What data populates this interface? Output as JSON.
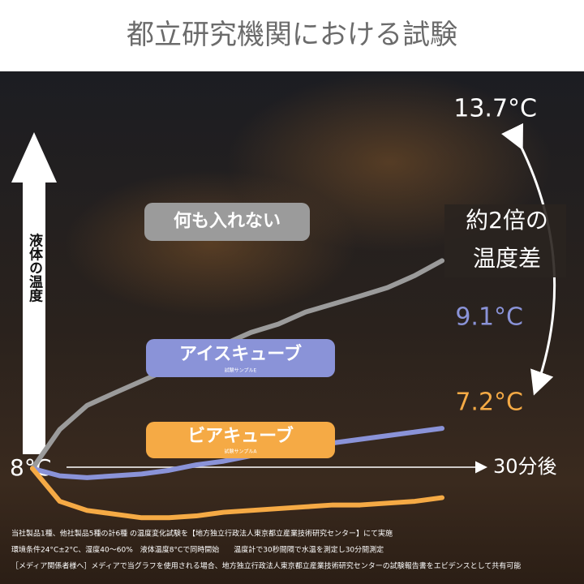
{
  "title": "都立研究機関における試験",
  "chart_data": {
    "type": "line",
    "y_axis_label": "液体の温度",
    "start_label": "8°C",
    "end_x_label": "30分後",
    "difference_label": [
      "約2倍の",
      "温度差"
    ],
    "x": [
      0,
      2,
      4,
      6,
      8,
      10,
      12,
      14,
      16,
      18,
      20,
      22,
      24,
      26,
      28,
      30
    ],
    "xlim": [
      0,
      30
    ],
    "ylim": [
      5.5,
      17
    ],
    "series": [
      {
        "name": "何も入れない",
        "color": "#9b9b9b",
        "end_label": "13.7°C",
        "values": [
          8.0,
          9.07,
          9.73,
          10.07,
          10.4,
          10.73,
          11.07,
          11.4,
          11.73,
          11.96,
          12.29,
          12.51,
          12.73,
          12.96,
          13.29,
          13.7
        ]
      },
      {
        "name": "アイスキューブ",
        "sample": "試験サンプルE",
        "color": "#8a93d8",
        "end_label": "9.1°C",
        "values": [
          8.0,
          7.8,
          7.75,
          7.8,
          7.85,
          7.95,
          8.1,
          8.2,
          8.35,
          8.45,
          8.55,
          8.7,
          8.8,
          8.9,
          9.0,
          9.1
        ]
      },
      {
        "name": "ビアキューブ",
        "sample": "試験サンプルA",
        "color": "#f5aa45",
        "end_label": "7.2°C",
        "values": [
          8.0,
          7.1,
          6.85,
          6.75,
          6.65,
          6.65,
          6.7,
          6.8,
          6.85,
          6.9,
          6.95,
          7.0,
          7.0,
          7.05,
          7.1,
          7.2
        ]
      }
    ]
  },
  "footnotes": [
    "当社製品1種、他社製品5種の計6種 の温度変化試験を【地方独立行政法人東京都立産業技術研究センター】にて実施",
    "環境条件24°C±2°C、湿度40～60%　液体温度8°Cで同時開始　　温度計で30秒間隔で水温を測定し30分間測定",
    "［メディア関係者様へ］メディアで当グラフを使用される場合、地方独立行政法人東京都立産業技術研究センターの試験報告書をエビデンスとして共有可能"
  ]
}
